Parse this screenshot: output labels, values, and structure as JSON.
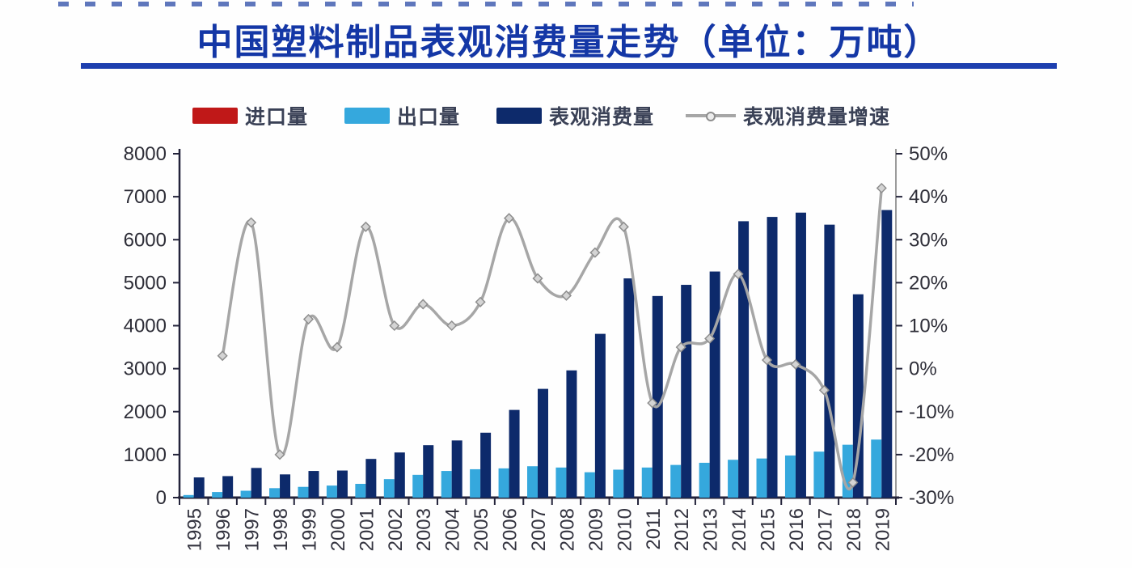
{
  "title": {
    "text": "中国塑料制品表观消费量走势（单位：万吨）"
  },
  "legend": {
    "items": [
      {
        "label": "进口量",
        "type": "bar",
        "color": "#c01818"
      },
      {
        "label": "出口量",
        "type": "bar",
        "color": "#35a8dd"
      },
      {
        "label": "表观消费量",
        "type": "bar",
        "color": "#0d2a6b"
      },
      {
        "label": "表观消费量增速",
        "type": "line",
        "color": "#a6a6a6"
      }
    ]
  },
  "colors": {
    "title_blue": "#1437a6",
    "underline_blue": "#1d3faf",
    "import_red": "#c01818",
    "export_blue": "#35a8dd",
    "consumption_navy": "#0d2a6b",
    "growth_line_gray": "#a6a6a6",
    "axis_dark": "#23233a",
    "axis_light": "#9b9b9b",
    "tick_text": "#2e2e38"
  },
  "chart_data": {
    "type": "bar",
    "subtype": "bar+line combo, dual axis",
    "title": "中国塑料制品表观消费量走势（单位：万吨）",
    "categories": [
      "1995",
      "1996",
      "1997",
      "1998",
      "1999",
      "2000",
      "2001",
      "2002",
      "2003",
      "2004",
      "2005",
      "2006",
      "2007",
      "2008",
      "2009",
      "2010",
      "2011",
      "2012",
      "2013",
      "2014",
      "2015",
      "2016",
      "2017",
      "2018",
      "2019"
    ],
    "series": [
      {
        "name": "进口量",
        "type": "bar",
        "axis": "left",
        "color": "#c01818",
        "values": [
          0,
          0,
          0,
          0,
          0,
          0,
          0,
          0,
          0,
          0,
          0,
          0,
          0,
          0,
          0,
          0,
          0,
          0,
          0,
          0,
          0,
          0,
          0,
          0,
          0
        ],
        "visible_in_plot": false
      },
      {
        "name": "出口量",
        "type": "bar",
        "axis": "left",
        "color": "#35a8dd",
        "values": [
          60,
          130,
          160,
          220,
          250,
          280,
          320,
          430,
          530,
          620,
          660,
          680,
          730,
          700,
          590,
          650,
          700,
          760,
          810,
          880,
          910,
          980,
          1070,
          1230,
          1350
        ]
      },
      {
        "name": "表观消费量",
        "type": "bar",
        "axis": "left",
        "color": "#0d2a6b",
        "values": [
          470,
          500,
          690,
          540,
          620,
          630,
          900,
          1050,
          1220,
          1330,
          1510,
          2040,
          2530,
          2960,
          3810,
          5100,
          4690,
          4950,
          5260,
          6430,
          6530,
          6630,
          6350,
          4730,
          6690
        ]
      },
      {
        "name": "表观消费量增速",
        "type": "line",
        "axis": "right",
        "color": "#a6a6a6",
        "values": [
          null,
          3,
          34,
          -20,
          11.5,
          5,
          33,
          10,
          15,
          10,
          15.5,
          35,
          21,
          17,
          27,
          33,
          -8,
          5,
          7,
          22,
          2,
          1,
          -5,
          -26.5,
          42
        ]
      }
    ],
    "left_axis": {
      "min": 0,
      "max": 8000,
      "step": 1000,
      "tick_labels": [
        "0",
        "1000",
        "2000",
        "3000",
        "4000",
        "5000",
        "6000",
        "7000",
        "8000"
      ]
    },
    "right_axis": {
      "min": -30,
      "max": 50,
      "step": 10,
      "unit": "%",
      "tick_labels": [
        "-30%",
        "-20%",
        "-10%",
        "0%",
        "10%",
        "20%",
        "30%",
        "40%",
        "50%"
      ]
    },
    "legend_position": "top",
    "grid": false,
    "x_label_rotation": -90
  }
}
